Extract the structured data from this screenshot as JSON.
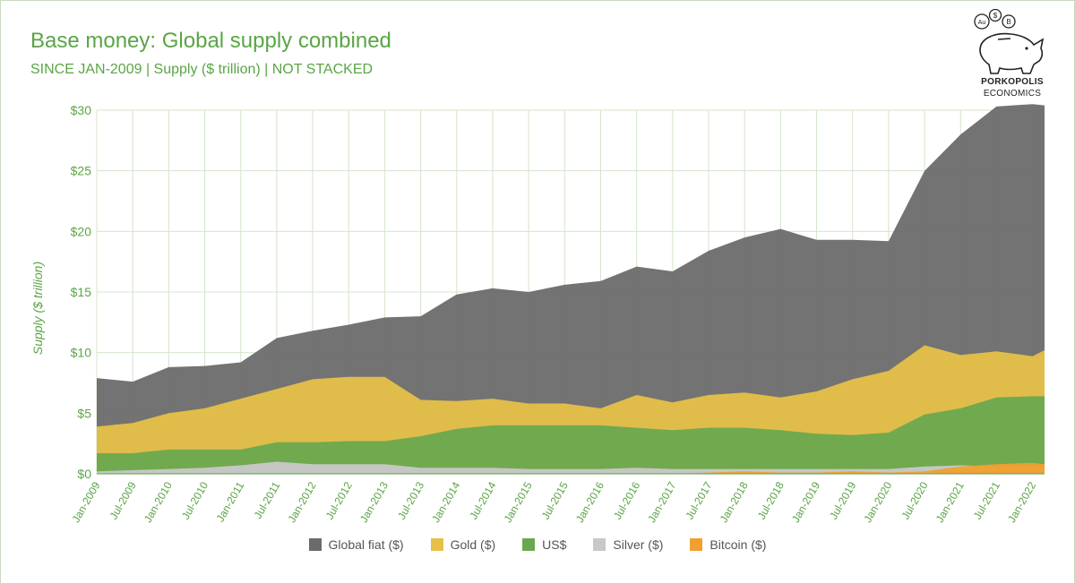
{
  "header": {
    "title": "Base money: Global supply combined",
    "subtitle": "SINCE JAN-2009 | Supply ($ trillion) | NOT STACKED"
  },
  "logo": {
    "line1": "PORKOPOLIS",
    "line2": "ECONOMICS",
    "coin_symbols": [
      "Au",
      "$",
      "B"
    ]
  },
  "chart_data": {
    "type": "area",
    "stacked": false,
    "ylabel": "Supply ($ trillion)",
    "ylim": [
      0,
      30
    ],
    "yticks": [
      "$0",
      "$5",
      "$10",
      "$15",
      "$20",
      "$25",
      "$30"
    ],
    "ytick_values": [
      0,
      5,
      10,
      15,
      20,
      25,
      30
    ],
    "xtick_labels": [
      "Jan-2009",
      "Jul-2009",
      "Jan-2010",
      "Jul-2010",
      "Jan-2011",
      "Jul-2011",
      "Jan-2012",
      "Jul-2012",
      "Jan-2013",
      "Jul-2013",
      "Jan-2014",
      "Jul-2014",
      "Jan-2015",
      "Jul-2015",
      "Jan-2016",
      "Jul-2016",
      "Jan-2017",
      "Jul-2017",
      "Jan-2018",
      "Jul-2018",
      "Jan-2019",
      "Jul-2019",
      "Jan-2020",
      "Jul-2020",
      "Jan-2021",
      "Jul-2021",
      "Jan-2022"
    ],
    "x": [
      "2009-01",
      "2009-07",
      "2010-01",
      "2010-07",
      "2011-01",
      "2011-07",
      "2012-01",
      "2012-07",
      "2013-01",
      "2013-07",
      "2014-01",
      "2014-07",
      "2015-01",
      "2015-07",
      "2016-01",
      "2016-07",
      "2017-01",
      "2017-07",
      "2018-01",
      "2018-07",
      "2019-01",
      "2019-07",
      "2020-01",
      "2020-07",
      "2021-01",
      "2021-07",
      "2022-01",
      "2022-03"
    ],
    "grid": true,
    "legend_position": "bottom",
    "series": [
      {
        "name": "Global fiat ($)",
        "color": "#6b6b6b",
        "values": [
          7.9,
          7.6,
          8.8,
          8.9,
          9.2,
          11.2,
          11.8,
          12.3,
          12.9,
          13.0,
          14.8,
          15.3,
          15.0,
          15.6,
          15.9,
          17.1,
          16.7,
          18.4,
          19.5,
          20.2,
          19.3,
          19.3,
          19.2,
          25.0,
          28.0,
          30.3,
          30.5,
          30.4
        ]
      },
      {
        "name": "Gold ($)",
        "color": "#e6c048",
        "values": [
          3.9,
          4.2,
          5.0,
          5.4,
          6.2,
          7.0,
          7.8,
          8.0,
          8.0,
          6.1,
          6.0,
          6.2,
          5.8,
          5.8,
          5.4,
          6.5,
          5.9,
          6.5,
          6.7,
          6.3,
          6.8,
          7.8,
          8.5,
          10.6,
          9.8,
          10.1,
          9.7,
          10.2
        ]
      },
      {
        "name": "US$",
        "color": "#6aa84f",
        "values": [
          1.7,
          1.7,
          2.0,
          2.0,
          2.0,
          2.6,
          2.6,
          2.7,
          2.7,
          3.1,
          3.7,
          4.0,
          4.0,
          4.0,
          4.0,
          3.8,
          3.6,
          3.8,
          3.8,
          3.6,
          3.3,
          3.2,
          3.4,
          4.9,
          5.4,
          6.3,
          6.4,
          6.4
        ]
      },
      {
        "name": "Silver ($)",
        "color": "#c8c8c8",
        "values": [
          0.2,
          0.3,
          0.4,
          0.5,
          0.7,
          1.0,
          0.8,
          0.8,
          0.8,
          0.5,
          0.5,
          0.5,
          0.4,
          0.4,
          0.4,
          0.5,
          0.4,
          0.4,
          0.4,
          0.4,
          0.4,
          0.4,
          0.4,
          0.6,
          0.7,
          0.6,
          0.6,
          0.6
        ]
      },
      {
        "name": "Bitcoin ($)",
        "color": "#f0a030",
        "values": [
          0.0,
          0.0,
          0.0,
          0.0,
          0.0,
          0.0,
          0.0,
          0.0,
          0.0,
          0.0,
          0.0,
          0.0,
          0.0,
          0.0,
          0.0,
          0.0,
          0.0,
          0.1,
          0.2,
          0.1,
          0.1,
          0.2,
          0.1,
          0.2,
          0.6,
          0.8,
          0.9,
          0.8
        ]
      }
    ]
  }
}
